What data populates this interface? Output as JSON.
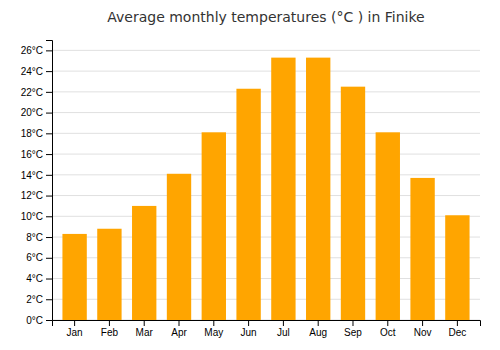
{
  "chart_data": {
    "type": "bar",
    "title": "Average monthly temperatures (°C ) in Finike",
    "categories": [
      "Jan",
      "Feb",
      "Mar",
      "Apr",
      "May",
      "Jun",
      "Jul",
      "Aug",
      "Sep",
      "Oct",
      "Nov",
      "Dec"
    ],
    "values": [
      8.3,
      8.8,
      11.0,
      14.1,
      18.1,
      22.3,
      25.3,
      25.3,
      22.5,
      18.1,
      13.7,
      10.1
    ],
    "color": "#FFA500",
    "ylim": [
      0,
      27
    ],
    "yticks": [
      {
        "value": 0,
        "label": "0°C"
      },
      {
        "value": 2,
        "label": "2°C"
      },
      {
        "value": 4,
        "label": "4°C"
      },
      {
        "value": 6,
        "label": "6°C"
      },
      {
        "value": 8,
        "label": "8°C"
      },
      {
        "value": 10,
        "label": "10°C"
      },
      {
        "value": 12,
        "label": "12°C"
      },
      {
        "value": 14,
        "label": "14°C"
      },
      {
        "value": 16,
        "label": "16°C"
      },
      {
        "value": 18,
        "label": "18°C"
      },
      {
        "value": 20,
        "label": "20°C"
      },
      {
        "value": 22,
        "label": "22°C"
      },
      {
        "value": 24,
        "label": "24°C"
      },
      {
        "value": 26,
        "label": "26°C"
      }
    ],
    "grid": true
  }
}
